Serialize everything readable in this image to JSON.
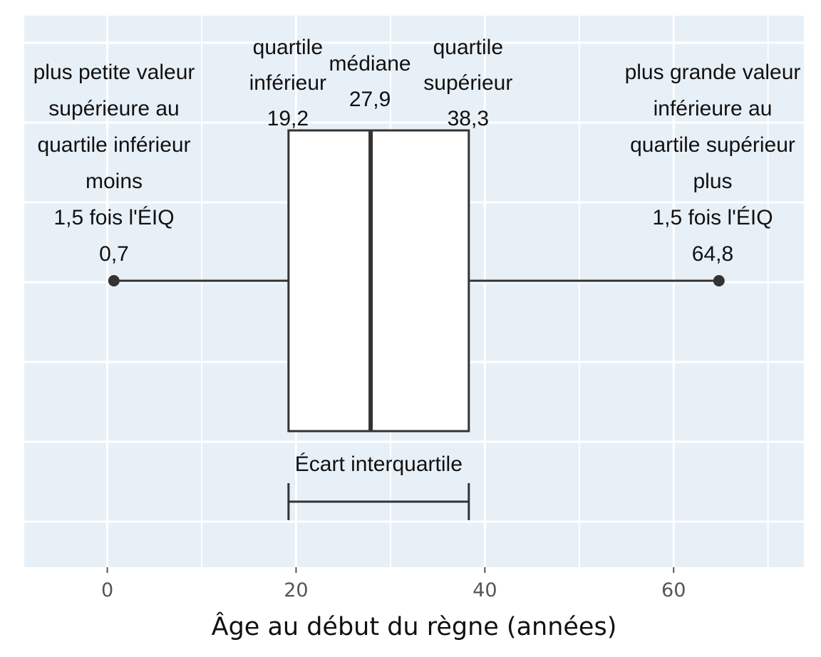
{
  "chart_data": {
    "type": "boxplot",
    "xlabel": "Âge au début du règne (années)",
    "xlim": [
      -8.8,
      73.8
    ],
    "xticks": [
      0,
      20,
      40,
      60
    ],
    "tick_labels": [
      "0",
      "20",
      "40",
      "60"
    ],
    "grid": true,
    "background": "#e8f0f7",
    "box": {
      "whisker_low": 0.7,
      "q1": 19.2,
      "median": 27.9,
      "q3": 38.3,
      "whisker_high": 64.8
    },
    "annotations": {
      "whisker_low": [
        "plus petite valeur",
        "supérieure au",
        "quartile inférieur",
        "moins",
        "1,5 fois l'ÉIQ",
        "0,7"
      ],
      "q1": [
        "quartile",
        "inférieur",
        "19,2"
      ],
      "median": [
        "médiane",
        "27,9"
      ],
      "q3": [
        "quartile",
        "supérieur",
        "38,3"
      ],
      "whisker_high": [
        "plus grande valeur",
        "inférieure au",
        "quartile supérieur",
        "plus",
        "1,5 fois l'ÉIQ",
        "64,8"
      ],
      "iqr": "Écart interquartile"
    }
  }
}
